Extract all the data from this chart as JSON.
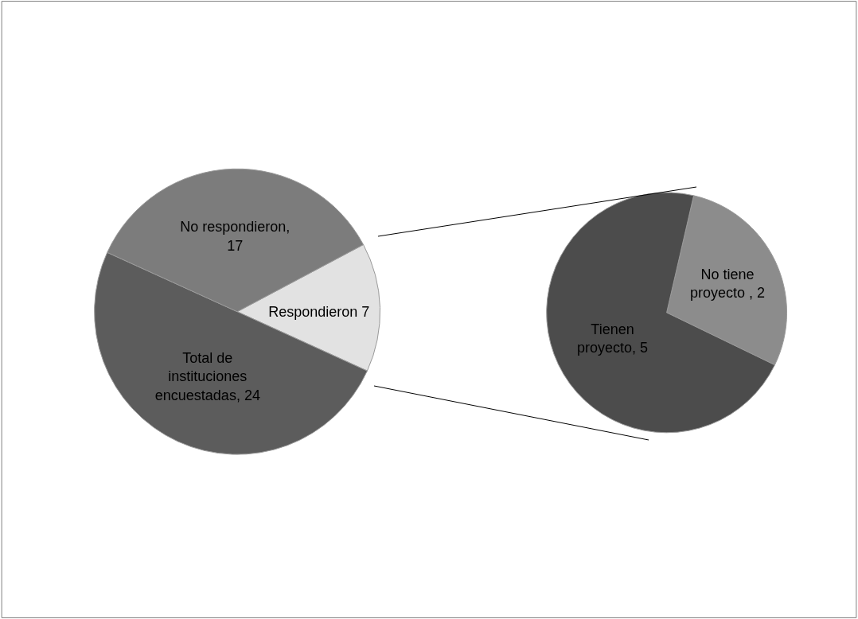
{
  "chart_data": [
    {
      "type": "pie",
      "categories": [
        "Respondieron 7",
        "Total de instituciones encuestadas, 24",
        "No respondieron, 17"
      ],
      "values": [
        7,
        24,
        17
      ],
      "colors": [
        "#e2e2e2",
        "#5c5c5c",
        "#7c7c7c"
      ]
    },
    {
      "type": "pie",
      "categories": [
        "No tiene proyecto , 2",
        "Tienen proyecto, 5"
      ],
      "values": [
        2,
        5
      ],
      "colors": [
        "#8c8c8c",
        "#4c4c4c"
      ]
    }
  ]
}
